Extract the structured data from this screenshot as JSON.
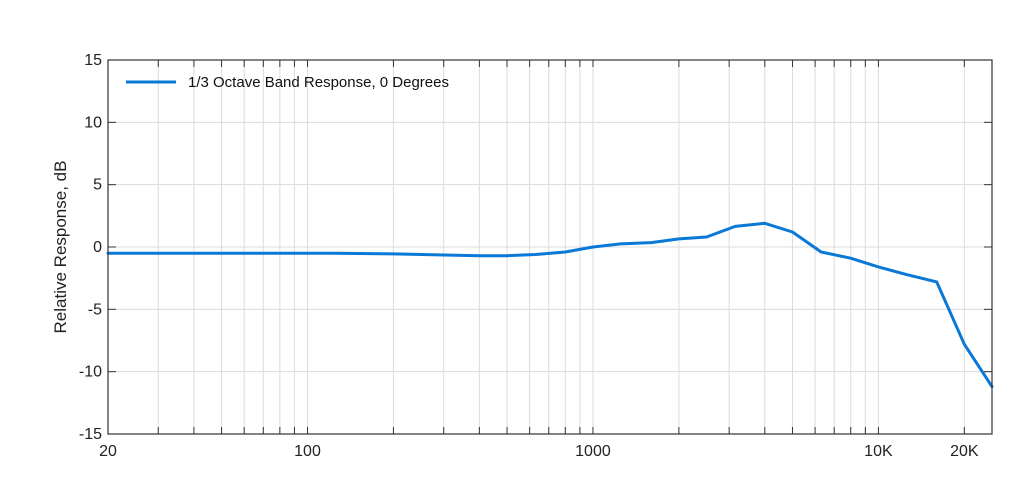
{
  "chart_data": {
    "type": "line",
    "title": "",
    "xlabel": "",
    "ylabel": "Relative Response, dB",
    "xscale": "log",
    "xlim": [
      20,
      25000
    ],
    "ylim": [
      -15,
      15
    ],
    "x_ticks": [
      {
        "value": 20,
        "label": "20"
      },
      {
        "value": 100,
        "label": "100"
      },
      {
        "value": 1000,
        "label": "1000"
      },
      {
        "value": 10000,
        "label": "10K"
      },
      {
        "value": 20000,
        "label": "20K"
      }
    ],
    "y_ticks": [
      {
        "value": 15,
        "label": "15"
      },
      {
        "value": 10,
        "label": "10"
      },
      {
        "value": 5,
        "label": "5"
      },
      {
        "value": 0,
        "label": "0"
      },
      {
        "value": -5,
        "label": "-5"
      },
      {
        "value": -10,
        "label": "-10"
      },
      {
        "value": -15,
        "label": "-15"
      }
    ],
    "grid": true,
    "legend_position": "top-left",
    "colors": {
      "series": "#0a78d7",
      "grid": "#dcdcdc",
      "frame": "#333333"
    },
    "series": [
      {
        "name": "1/3 Octave Band Response, 0 Degrees",
        "x": [
          20,
          40,
          80,
          125,
          200,
          315,
          400,
          500,
          630,
          800,
          1000,
          1250,
          1600,
          2000,
          2500,
          3150,
          4000,
          5000,
          6300,
          8000,
          10000,
          12500,
          16000,
          20000,
          25000
        ],
        "y": [
          -0.5,
          -0.5,
          -0.5,
          -0.5,
          -0.55,
          -0.65,
          -0.7,
          -0.7,
          -0.6,
          -0.4,
          0.0,
          0.25,
          0.35,
          0.65,
          0.8,
          1.65,
          1.9,
          1.2,
          -0.4,
          -0.9,
          -1.6,
          -2.2,
          -2.8,
          -7.8,
          -11.2
        ]
      }
    ]
  }
}
